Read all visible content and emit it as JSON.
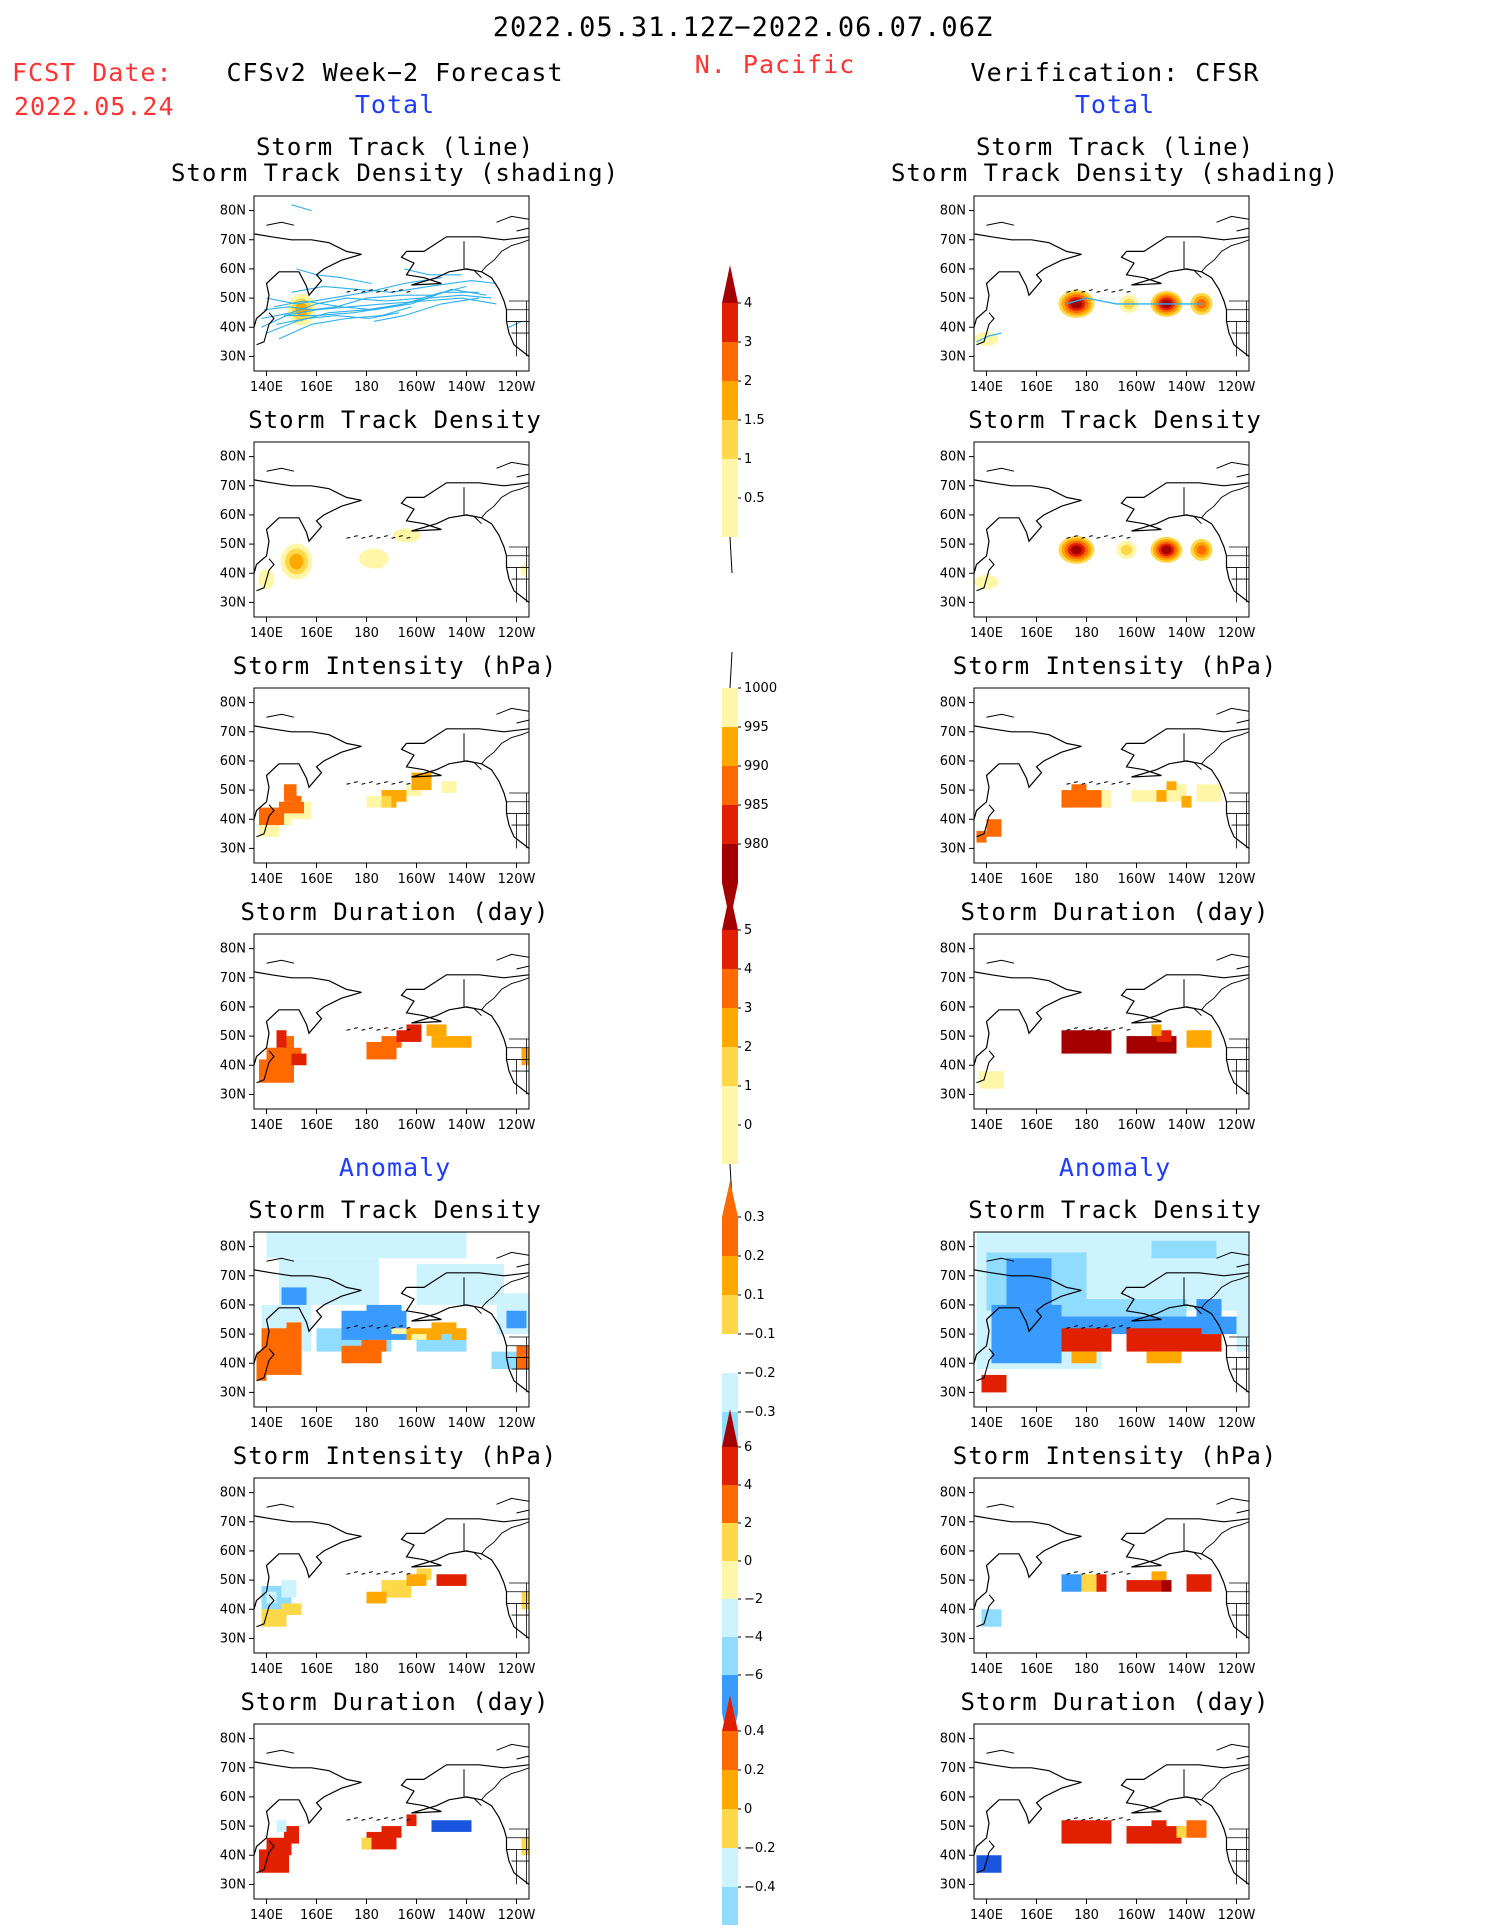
{
  "header": {
    "date_range": "2022.05.31.12Z−2022.06.07.06Z",
    "region": "N. Pacific",
    "fcst_label": "FCST Date:",
    "fcst_date": "2022.05.24",
    "left_model": "CFSv2 Week−2 Forecast",
    "right_model": "Verification: CFSR",
    "total_label": "Total",
    "anomaly_label": "Anomaly"
  },
  "panel_titles": {
    "track_line": "Storm Track (line)",
    "track_shading": "Storm Track Density (shading)",
    "density": "Storm Track Density",
    "intensity": "Storm Intensity (hPa)",
    "duration": "Storm Duration (day)"
  },
  "axes": {
    "lat_labels": [
      "80N",
      "70N",
      "60N",
      "50N",
      "40N",
      "30N"
    ],
    "lon_labels": [
      "140E",
      "160E",
      "180",
      "160W",
      "140W",
      "120W"
    ]
  },
  "colors": {
    "warm": [
      "#fff6a8",
      "#ffd84a",
      "#ffa800",
      "#ff6a00",
      "#e02000",
      "#a50000"
    ],
    "cool": [
      "#cdf3ff",
      "#8fdcff",
      "#3a9bff",
      "#1a55e0"
    ],
    "track_line": "#2fb0ee"
  },
  "chart_data": [
    {
      "type": "heatmap",
      "title": "Storm Track Density",
      "colorbar": {
        "labels": [
          "4",
          "3",
          "2",
          "1.5",
          "1",
          "0.5"
        ]
      },
      "forecast_blobs": [
        {
          "lon": 155,
          "lat": 46,
          "value": 1.6
        },
        {
          "lon": 145,
          "lat": 42,
          "value": 1.0
        },
        {
          "lon": 182,
          "lat": 45,
          "value": 0.8
        },
        {
          "lon": 195,
          "lat": 52,
          "value": 0.7
        }
      ],
      "verification_blobs": [
        {
          "lon": 176,
          "lat": 48,
          "value": 4.0
        },
        {
          "lon": 213,
          "lat": 48,
          "value": 3.5
        },
        {
          "lon": 226,
          "lat": 48,
          "value": 2.0
        },
        {
          "lon": 145,
          "lat": 37,
          "value": 0.6
        }
      ]
    },
    {
      "type": "heatmap",
      "title": "Storm Intensity (hPa)",
      "colorbar": {
        "labels": [
          "1000",
          "995",
          "990",
          "985",
          "980"
        ]
      }
    },
    {
      "type": "heatmap",
      "title": "Storm Duration (day)",
      "colorbar": {
        "labels": [
          "5",
          "4",
          "3",
          "2",
          "1",
          "0"
        ]
      }
    },
    {
      "type": "heatmap",
      "title": "Storm Track Density Anomaly",
      "colorbar": {
        "labels": [
          "0.3",
          "0.2",
          "0.1",
          "−0.1",
          "−0.2",
          "−0.3"
        ]
      }
    },
    {
      "type": "heatmap",
      "title": "Storm Intensity Anomaly (hPa)",
      "colorbar": {
        "labels": [
          "6",
          "4",
          "2",
          "0",
          "−2",
          "−4",
          "−6"
        ]
      }
    },
    {
      "type": "heatmap",
      "title": "Storm Duration Anomaly (day)",
      "colorbar": {
        "labels": [
          "0.4",
          "0.2",
          "0",
          "−0.2",
          "−0.4"
        ]
      }
    }
  ]
}
